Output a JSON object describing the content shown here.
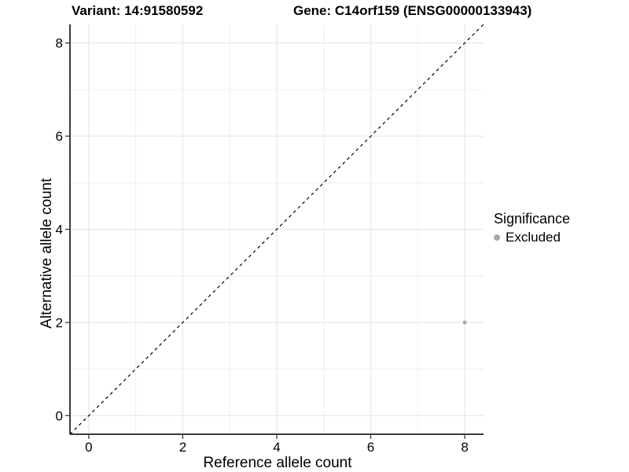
{
  "chart_data": {
    "type": "scatter",
    "title_left": "Variant: 14:91580592",
    "title_right": "Gene: C14orf159 (ENSG00000133943)",
    "xlabel": "Reference allele count",
    "ylabel": "Alternative allele count",
    "xlim": [
      -0.4,
      8.4
    ],
    "ylim": [
      -0.4,
      8.4
    ],
    "xticks": [
      0,
      2,
      4,
      6,
      8
    ],
    "yticks": [
      0,
      2,
      4,
      6,
      8
    ],
    "x_minor_ticks": [
      1,
      3,
      5,
      7
    ],
    "y_minor_ticks": [
      1,
      3,
      5,
      7
    ],
    "grid": true,
    "identity_line": {
      "style": "dashed",
      "from": [
        -0.4,
        -0.4
      ],
      "to": [
        8.4,
        8.4
      ]
    },
    "series": [
      {
        "name": "Excluded",
        "points": [
          {
            "x": 8,
            "y": 2
          }
        ],
        "point_radius": 2.5
      }
    ],
    "legend": {
      "title": "Significance",
      "position": "right",
      "entries": [
        {
          "label": "Excluded",
          "color": "#a9a9a9"
        }
      ]
    }
  },
  "colors": {
    "background": "#ffffff",
    "point": "#a9a9a9",
    "grid_major": "#e3e3e3",
    "grid_minor": "#eeeeee",
    "axis_line": "#3c3c3c",
    "tick_mark": "#3c3c3c",
    "identity_line": "#000000",
    "text": "#000000"
  }
}
